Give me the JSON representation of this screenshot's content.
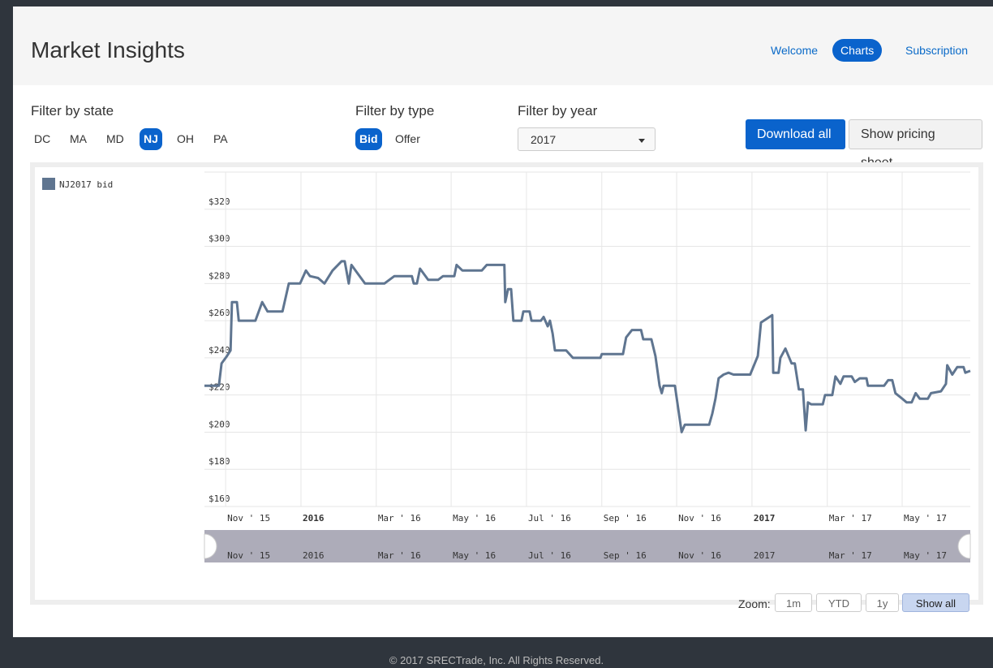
{
  "header": {
    "title": "Market Insights",
    "nav": [
      {
        "label": "Welcome"
      },
      {
        "label": "Charts",
        "active": true
      },
      {
        "label": "Subscription"
      }
    ]
  },
  "filters": {
    "state": {
      "label": "Filter by state",
      "options": [
        {
          "label": "DC"
        },
        {
          "label": "MA"
        },
        {
          "label": "MD"
        },
        {
          "label": "NJ",
          "selected": true
        },
        {
          "label": "OH"
        },
        {
          "label": "PA"
        }
      ]
    },
    "type": {
      "label": "Filter by type",
      "options": [
        {
          "label": "Bid",
          "selected": true
        },
        {
          "label": "Offer"
        }
      ]
    },
    "year": {
      "label": "Filter by year",
      "selected": "2017"
    }
  },
  "buttons": [
    {
      "label": "Download all",
      "primary": true
    },
    {
      "label": "Show pricing sheet"
    }
  ],
  "chart_data": {
    "type": "line",
    "x": [
      2015.786,
      2015.818,
      2015.824,
      2015.836,
      2015.844,
      2015.847,
      2015.858,
      2015.862,
      2015.899,
      2015.914,
      2015.926,
      2015.959,
      2015.973,
      2015.998,
      2016.011,
      2016.02,
      2016.038,
      2016.052,
      2016.07,
      2016.09,
      2016.097,
      2016.106,
      2016.112,
      2016.124,
      2016.142,
      2016.185,
      2016.207,
      2016.246,
      2016.25,
      2016.257,
      2016.264,
      2016.282,
      2016.304,
      2016.315,
      2016.34,
      2016.345,
      2016.358,
      2016.401,
      2016.412,
      2016.451,
      2016.453,
      2016.459,
      2016.466,
      2016.471,
      2016.489,
      2016.493,
      2016.507,
      2016.511,
      2016.532,
      2016.538,
      2016.547,
      2016.552,
      2016.558,
      2016.563,
      2016.588,
      2016.603,
      2016.664,
      2016.667,
      2016.714,
      2016.721,
      2016.734,
      2016.754,
      2016.759,
      2016.777,
      2016.786,
      2016.795,
      2016.8,
      2016.804,
      2016.829,
      2016.844,
      2016.851,
      2016.872,
      2016.905,
      2016.912,
      2016.919,
      2016.926,
      2016.937,
      2016.948,
      2016.959,
      2016.996,
      2017.013,
      2017.02,
      2017.045,
      2017.047,
      2017.059,
      2017.063,
      2017.074,
      2017.088,
      2017.095,
      2017.104,
      2017.113,
      2017.119,
      2017.124,
      2017.131,
      2017.157,
      2017.162,
      2017.178,
      2017.185,
      2017.196,
      2017.203,
      2017.221,
      2017.228,
      2017.239,
      2017.254,
      2017.257,
      2017.293,
      2017.302,
      2017.311,
      2017.318,
      2017.333,
      2017.343,
      2017.354,
      2017.363,
      2017.372,
      2017.39,
      2017.397,
      2017.419,
      2017.43,
      2017.433,
      2017.444,
      2017.455,
      2017.469,
      2017.473,
      2017.484
    ],
    "series": [
      {
        "name": "NJ2017 bid",
        "color": "#5f7590",
        "values": [
          225,
          225,
          237,
          241,
          244,
          270,
          270,
          260,
          260,
          270,
          265,
          265,
          280,
          280,
          287,
          284,
          283,
          280,
          287,
          292,
          292,
          280,
          290,
          286,
          280,
          280,
          284,
          284,
          280,
          280,
          288,
          282,
          282,
          284,
          284,
          290,
          287,
          287,
          290,
          290,
          270,
          277,
          277,
          260,
          260,
          265,
          265,
          260,
          260,
          262,
          257,
          260,
          253,
          244,
          244,
          240,
          240,
          242,
          242,
          251,
          255,
          255,
          250,
          250,
          241,
          225,
          221,
          225,
          225,
          200,
          204,
          204,
          204,
          210,
          218,
          229,
          231,
          232,
          231,
          231,
          241,
          259,
          263,
          232,
          232,
          240,
          245,
          237,
          237,
          223,
          223,
          201,
          216,
          215,
          215,
          220,
          220,
          230,
          226,
          230,
          230,
          227,
          229,
          229,
          225,
          225,
          228,
          228,
          221,
          218,
          216,
          216,
          221,
          218,
          218,
          221,
          222,
          226,
          236,
          231,
          235,
          235,
          232,
          233
        ]
      }
    ],
    "xlim": [
      2015.786,
      2017.484
    ],
    "ylim": [
      160,
      340
    ],
    "xticks": [
      {
        "value": 2015.833,
        "label": "Nov ' 15"
      },
      {
        "value": 2016,
        "label": "2016",
        "bold": true
      },
      {
        "value": 2016.167,
        "label": "Mar ' 16"
      },
      {
        "value": 2016.333,
        "label": "May ' 16"
      },
      {
        "value": 2016.5,
        "label": "Jul ' 16"
      },
      {
        "value": 2016.667,
        "label": "Sep ' 16"
      },
      {
        "value": 2016.833,
        "label": "Nov ' 16"
      },
      {
        "value": 2017,
        "label": "2017",
        "bold": true
      },
      {
        "value": 2017.167,
        "label": "Mar ' 17"
      },
      {
        "value": 2017.333,
        "label": "May ' 17"
      }
    ],
    "yticks": [
      {
        "value": 160,
        "label": "$160"
      },
      {
        "value": 180,
        "label": "$180"
      },
      {
        "value": 200,
        "label": "$200"
      },
      {
        "value": 220,
        "label": "$220"
      },
      {
        "value": 240,
        "label": "$240"
      },
      {
        "value": 260,
        "label": "$260"
      },
      {
        "value": 280,
        "label": "$280"
      },
      {
        "value": 300,
        "label": "$300"
      },
      {
        "value": 320,
        "label": "$320"
      }
    ],
    "grid": true,
    "legend": "top-left"
  },
  "zoom": {
    "label": "Zoom:",
    "options": [
      {
        "label": "1m"
      },
      {
        "label": "YTD"
      },
      {
        "label": "1y"
      },
      {
        "label": "Show all",
        "active": true
      }
    ]
  },
  "footer": "© 2017 SRECTrade, Inc. All Rights Reserved."
}
